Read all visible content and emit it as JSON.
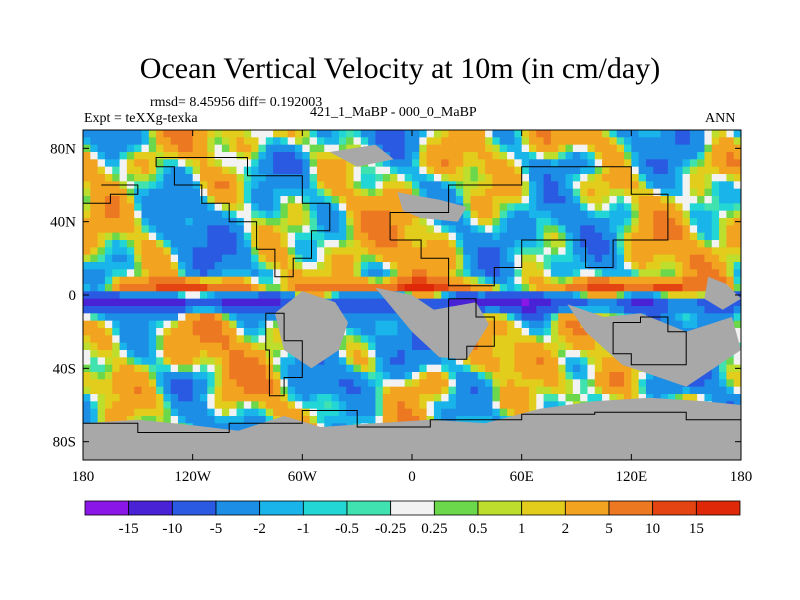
{
  "chart_data": {
    "type": "heatmap",
    "title": "Ocean Vertical Velocity at 10m (in cm/day)",
    "stats_line": "rmsd= 8.45956 diff= 0.192003",
    "left_label": "Expt = teXXg-texka",
    "center_label": "421_1_MaBP - 000_0_MaBP",
    "right_label": "ANN",
    "x_range": [
      -180,
      180
    ],
    "y_range": [
      -90,
      90
    ],
    "x_ticks": [
      {
        "value": -180,
        "label": "180"
      },
      {
        "value": -120,
        "label": "120W"
      },
      {
        "value": -60,
        "label": "60W"
      },
      {
        "value": 0,
        "label": "0"
      },
      {
        "value": 60,
        "label": "60E"
      },
      {
        "value": 120,
        "label": "120E"
      },
      {
        "value": 180,
        "label": "180"
      }
    ],
    "y_ticks": [
      {
        "value": 80,
        "label": "80N"
      },
      {
        "value": 40,
        "label": "40N"
      },
      {
        "value": 0,
        "label": "0"
      },
      {
        "value": -40,
        "label": "40S"
      },
      {
        "value": -80,
        "label": "80S"
      }
    ],
    "colorbar": {
      "levels": [
        "-15",
        "-10",
        "-5",
        "-2",
        "-1",
        "-0.5",
        "-0.25",
        "0.25",
        "0.5",
        "1",
        "2",
        "5",
        "10",
        "15"
      ],
      "colors": [
        "#8a16e8",
        "#4a22d6",
        "#2a5ae2",
        "#1c8ee6",
        "#18b4ea",
        "#22d6d6",
        "#40e2b0",
        "#f2f2f2",
        "#6ad84a",
        "#bede2e",
        "#e2cc1c",
        "#f2a420",
        "#ec7822",
        "#e44412",
        "#de2808"
      ]
    },
    "land_color": "#a8a8a8",
    "description_regions": [
      {
        "name": "equatorial-upwelling",
        "lon": [
          -180,
          180
        ],
        "lat": [
          -8,
          8
        ],
        "sign": "mixed-strong"
      },
      {
        "name": "southern-land-mass",
        "lon": [
          -180,
          180
        ],
        "lat": [
          -90,
          -65
        ],
        "sign": "land"
      }
    ]
  }
}
